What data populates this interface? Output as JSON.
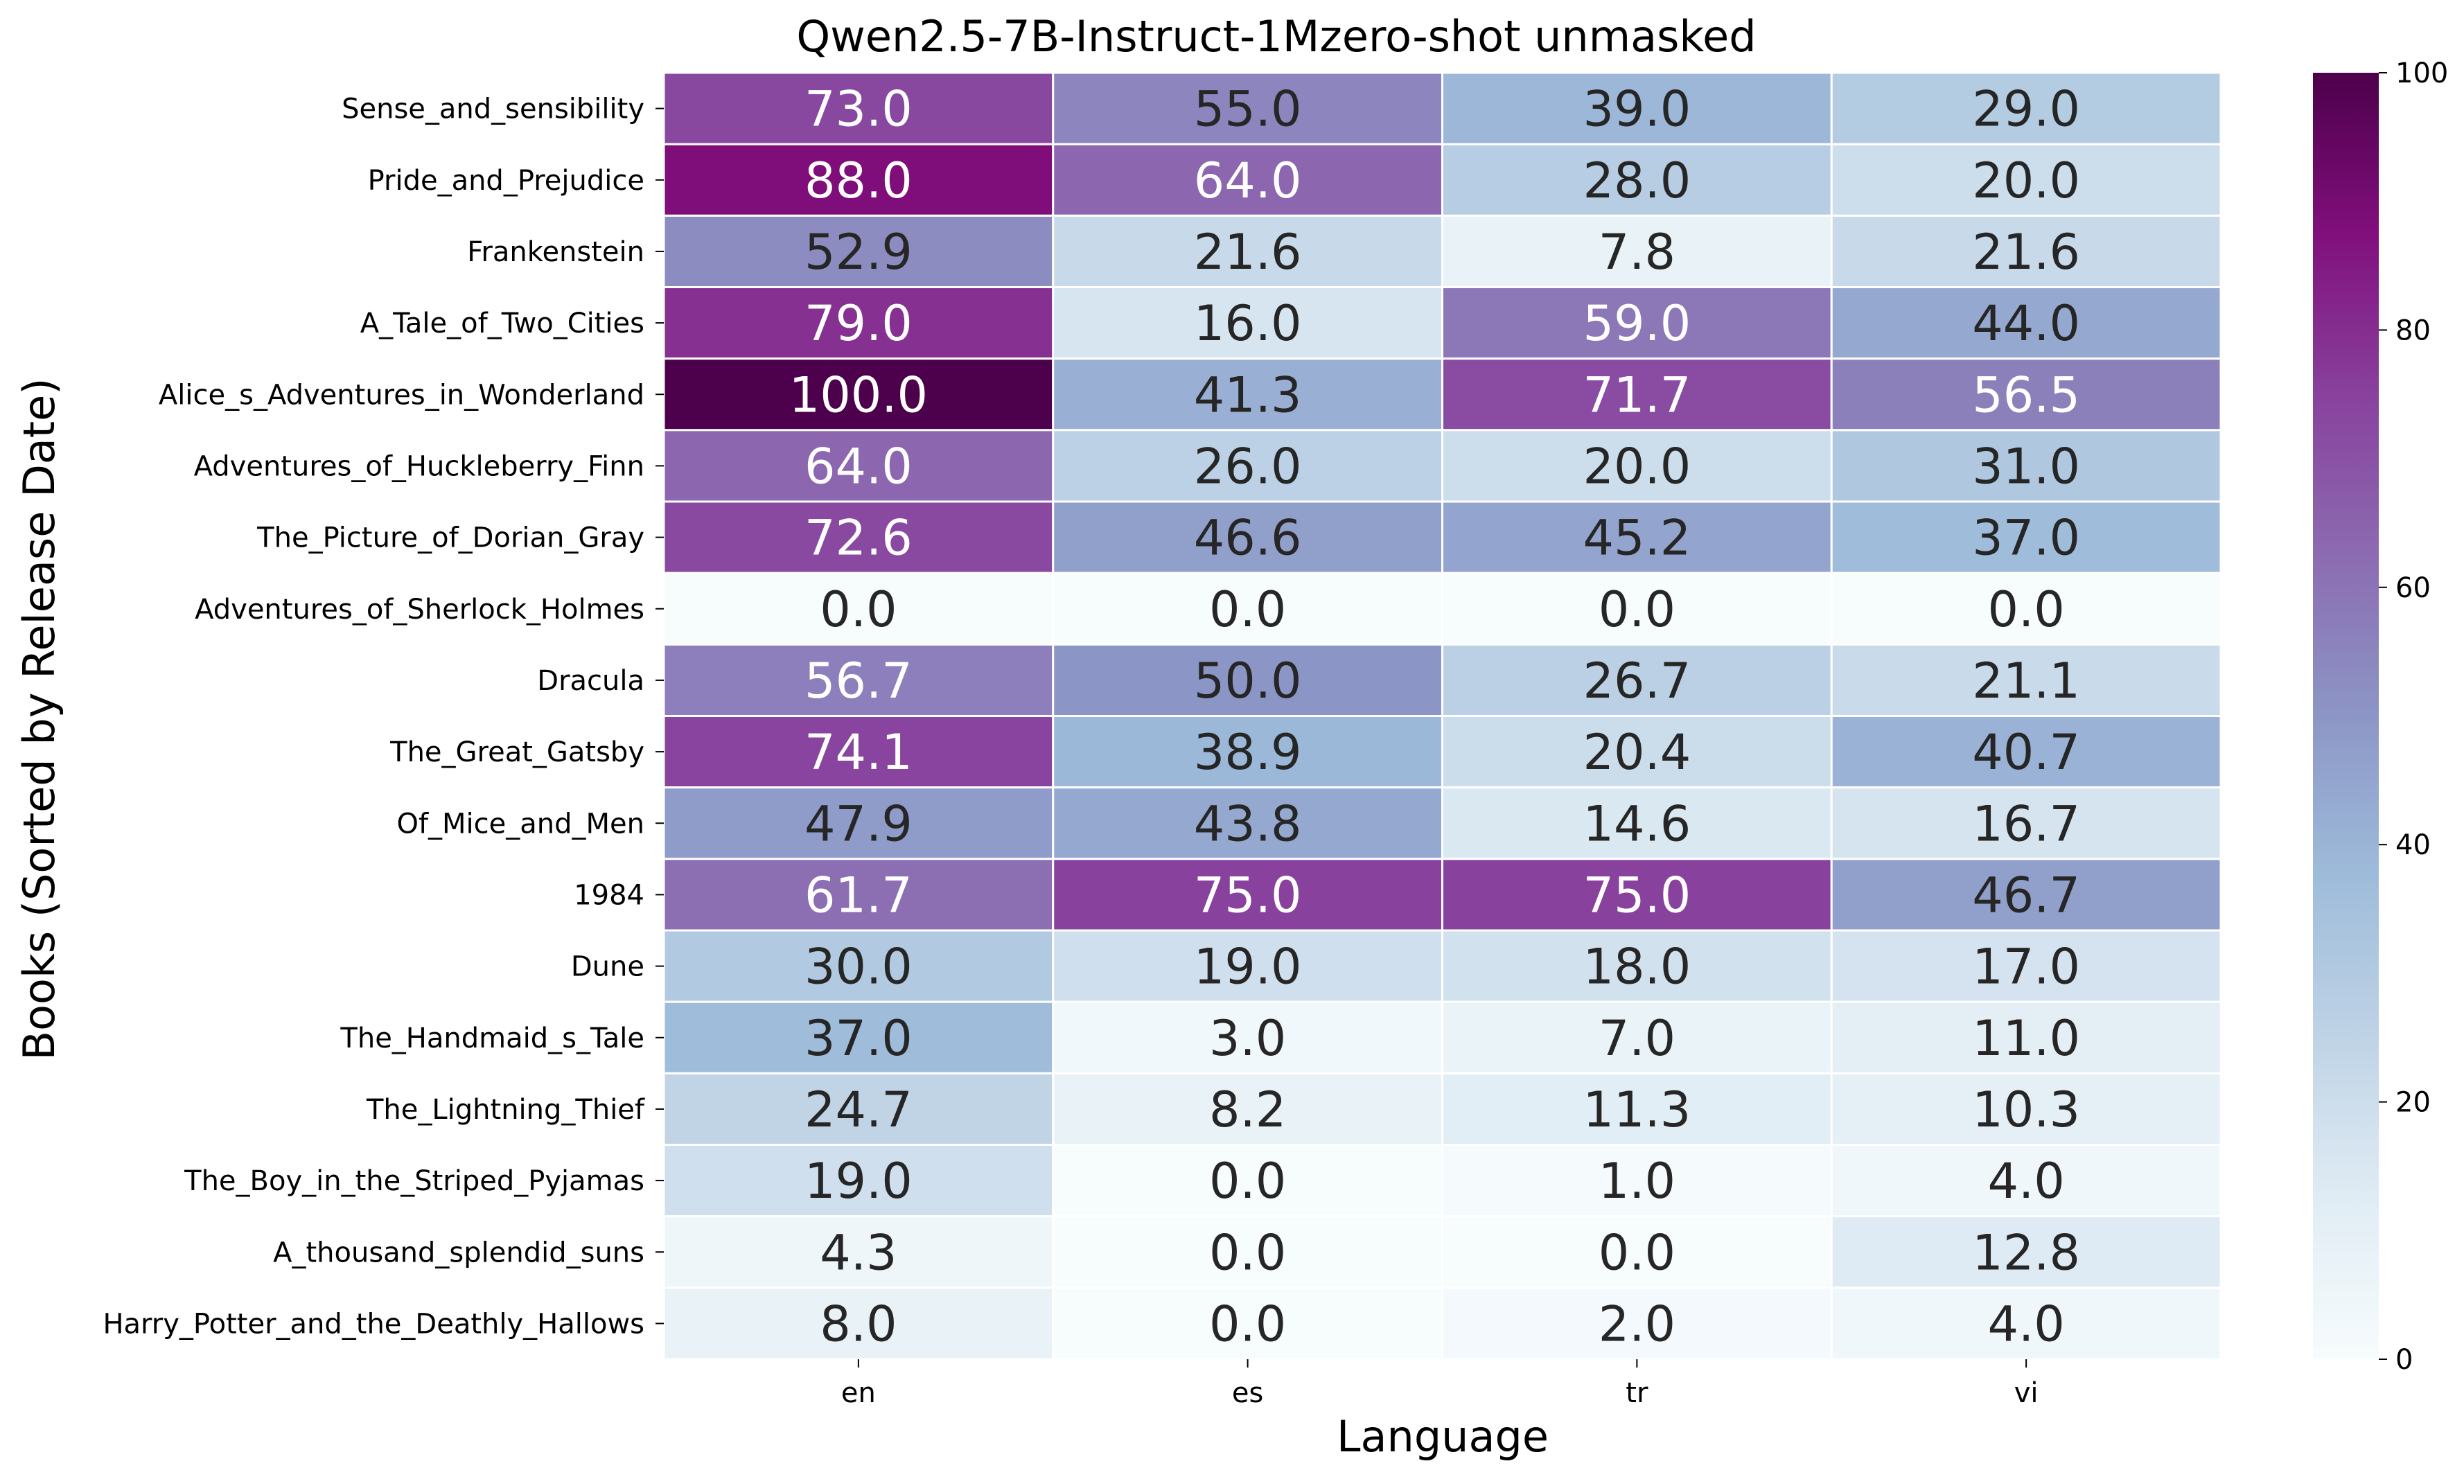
{
  "chart_data": {
    "type": "heatmap",
    "title": "Qwen2.5-7B-Instruct-1Mzero-shot unmasked",
    "xlabel": "Language",
    "ylabel": "Books (Sorted by Release Date)",
    "x_categories": [
      "en",
      "es",
      "tr",
      "vi"
    ],
    "y_categories": [
      "Sense_and_sensibility",
      "Pride_and_Prejudice",
      "Frankenstein",
      "A_Tale_of_Two_Cities",
      "Alice_s_Adventures_in_Wonderland",
      "Adventures_of_Huckleberry_Finn",
      "The_Picture_of_Dorian_Gray",
      "Adventures_of_Sherlock_Holmes",
      "Dracula",
      "The_Great_Gatsby",
      "Of_Mice_and_Men",
      "1984",
      "Dune",
      "The_Handmaid_s_Tale",
      "The_Lightning_Thief",
      "The_Boy_in_the_Striped_Pyjamas",
      "A_thousand_splendid_suns",
      "Harry_Potter_and_the_Deathly_Hallows"
    ],
    "values": [
      [
        73.0,
        55.0,
        39.0,
        29.0
      ],
      [
        88.0,
        64.0,
        28.0,
        20.0
      ],
      [
        52.9,
        21.6,
        7.8,
        21.6
      ],
      [
        79.0,
        16.0,
        59.0,
        44.0
      ],
      [
        100.0,
        41.3,
        71.7,
        56.5
      ],
      [
        64.0,
        26.0,
        20.0,
        31.0
      ],
      [
        72.6,
        46.6,
        45.2,
        37.0
      ],
      [
        0.0,
        0.0,
        0.0,
        0.0
      ],
      [
        56.7,
        50.0,
        26.7,
        21.1
      ],
      [
        74.1,
        38.9,
        20.4,
        40.7
      ],
      [
        47.9,
        43.8,
        14.6,
        16.7
      ],
      [
        61.7,
        75.0,
        75.0,
        46.7
      ],
      [
        30.0,
        19.0,
        18.0,
        17.0
      ],
      [
        37.0,
        3.0,
        7.0,
        11.0
      ],
      [
        24.7,
        8.2,
        11.3,
        10.3
      ],
      [
        19.0,
        0.0,
        1.0,
        4.0
      ],
      [
        4.3,
        0.0,
        0.0,
        12.8
      ],
      [
        8.0,
        0.0,
        2.0,
        4.0
      ]
    ],
    "value_format": "0.1f",
    "colormap": "BuPu",
    "colorbar": {
      "min": 0,
      "max": 100,
      "ticks": [
        0,
        20,
        40,
        60,
        80,
        100
      ]
    },
    "colors": {
      "cell_border": "#ffffff",
      "text_dark": "#262626",
      "text_light": "#ffffff"
    }
  }
}
